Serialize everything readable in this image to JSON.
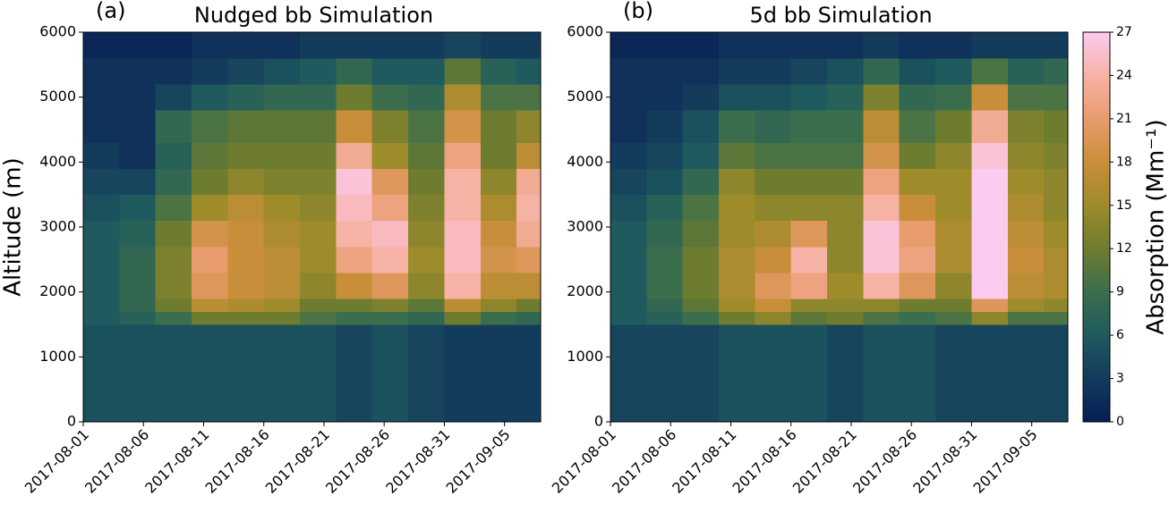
{
  "chart_data": [
    {
      "type": "heatmap",
      "panel_label": "(a)",
      "title": "Nudged bb Simulation",
      "ylabel": "Altitude (m)",
      "x": [
        "2017-08-01",
        "2017-08-04",
        "2017-08-07",
        "2017-08-10",
        "2017-08-13",
        "2017-08-16",
        "2017-08-19",
        "2017-08-22",
        "2017-08-25",
        "2017-08-28",
        "2017-08-31",
        "2017-09-03",
        "2017-09-06",
        "2017-09-08"
      ],
      "y": [
        0,
        1500,
        1700,
        1900,
        2300,
        2700,
        3100,
        3500,
        3900,
        4300,
        4800,
        5200,
        5600,
        6000
      ],
      "values": [
        [
          5,
          5,
          5,
          5,
          5,
          5,
          5,
          4,
          5,
          4,
          3,
          3,
          3
        ],
        [
          6,
          7,
          9,
          12,
          12,
          12,
          10,
          9,
          9,
          8,
          12,
          9,
          8
        ],
        [
          6,
          8,
          12,
          17,
          16,
          15,
          12,
          12,
          13,
          11,
          17,
          14,
          12
        ],
        [
          6,
          8,
          13,
          20,
          18,
          17,
          14,
          18,
          20,
          14,
          24,
          17,
          17
        ],
        [
          6,
          8,
          13,
          21,
          18,
          17,
          15,
          22,
          24,
          15,
          25,
          19,
          20
        ],
        [
          6,
          7,
          12,
          19,
          18,
          16,
          15,
          24,
          25,
          14,
          25,
          18,
          23
        ],
        [
          5,
          6,
          10,
          15,
          17,
          15,
          14,
          25,
          22,
          13,
          24,
          16,
          24
        ],
        [
          4,
          4,
          8,
          12,
          14,
          13,
          13,
          26,
          20,
          12,
          24,
          14,
          23
        ],
        [
          3,
          2,
          7,
          11,
          12,
          12,
          12,
          23,
          15,
          11,
          22,
          12,
          17
        ],
        [
          2,
          2,
          8,
          10,
          11,
          11,
          11,
          18,
          13,
          10,
          19,
          12,
          14
        ],
        [
          2,
          2,
          4,
          6,
          7,
          8,
          8,
          12,
          9,
          8,
          16,
          10,
          10
        ],
        [
          2,
          2,
          2,
          3,
          4,
          5,
          6,
          8,
          6,
          6,
          11,
          7,
          6
        ],
        [
          1,
          1,
          1,
          2,
          2,
          2,
          3,
          3,
          3,
          3,
          4,
          3,
          3
        ]
      ],
      "xlim": [
        "2017-08-01",
        "2017-09-08"
      ],
      "ylim": [
        0,
        6000
      ],
      "xticks": [
        "2017-08-01",
        "2017-08-06",
        "2017-08-11",
        "2017-08-16",
        "2017-08-21",
        "2017-08-26",
        "2017-08-31",
        "2017-09-05"
      ],
      "yticks": [
        0,
        1000,
        2000,
        3000,
        4000,
        5000,
        6000
      ]
    },
    {
      "type": "heatmap",
      "panel_label": "(b)",
      "title": "5d bb Simulation",
      "x": [
        "2017-08-01",
        "2017-08-04",
        "2017-08-07",
        "2017-08-10",
        "2017-08-13",
        "2017-08-16",
        "2017-08-19",
        "2017-08-22",
        "2017-08-25",
        "2017-08-28",
        "2017-08-31",
        "2017-09-03",
        "2017-09-06",
        "2017-09-08"
      ],
      "y": [
        0,
        1500,
        1700,
        1900,
        2300,
        2700,
        3100,
        3500,
        3900,
        4300,
        4800,
        5200,
        5600,
        6000
      ],
      "values": [
        [
          4,
          4,
          4,
          5,
          5,
          5,
          4,
          5,
          5,
          4,
          4,
          4,
          4
        ],
        [
          6,
          7,
          9,
          12,
          14,
          11,
          12,
          10,
          9,
          10,
          14,
          10,
          10
        ],
        [
          6,
          8,
          11,
          15,
          18,
          14,
          14,
          14,
          12,
          12,
          20,
          15,
          14
        ],
        [
          6,
          9,
          12,
          16,
          20,
          22,
          15,
          24,
          20,
          14,
          27,
          17,
          16
        ],
        [
          6,
          9,
          12,
          16,
          18,
          24,
          14,
          26,
          22,
          16,
          27,
          18,
          16
        ],
        [
          6,
          8,
          11,
          15,
          16,
          20,
          14,
          26,
          21,
          16,
          27,
          17,
          15
        ],
        [
          5,
          7,
          10,
          15,
          14,
          14,
          14,
          24,
          18,
          15,
          27,
          16,
          14
        ],
        [
          4,
          5,
          8,
          14,
          12,
          12,
          12,
          22,
          15,
          15,
          27,
          15,
          14
        ],
        [
          3,
          4,
          6,
          11,
          10,
          10,
          10,
          19,
          12,
          14,
          26,
          14,
          13
        ],
        [
          2,
          3,
          5,
          9,
          8,
          9,
          9,
          17,
          10,
          12,
          23,
          13,
          12
        ],
        [
          2,
          2,
          3,
          5,
          5,
          6,
          7,
          13,
          8,
          9,
          18,
          10,
          10
        ],
        [
          2,
          2,
          2,
          3,
          3,
          4,
          5,
          8,
          5,
          6,
          10,
          7,
          8
        ],
        [
          1,
          1,
          1,
          2,
          2,
          2,
          2,
          3,
          2,
          2,
          3,
          3,
          3
        ]
      ],
      "xlim": [
        "2017-08-01",
        "2017-09-08"
      ],
      "ylim": [
        0,
        6000
      ],
      "xticks": [
        "2017-08-01",
        "2017-08-06",
        "2017-08-11",
        "2017-08-16",
        "2017-08-21",
        "2017-08-26",
        "2017-08-31",
        "2017-09-05"
      ],
      "yticks": [
        0,
        1000,
        2000,
        3000,
        4000,
        5000,
        6000
      ]
    }
  ],
  "colorbar": {
    "label": "Absorption (Mm⁻¹)",
    "lim": [
      0,
      27
    ],
    "ticks": [
      0,
      3,
      6,
      9,
      12,
      15,
      18,
      21,
      24,
      27
    ],
    "colors": [
      "#061d55",
      "#133b5c",
      "#1f5a5e",
      "#3b6e4c",
      "#6e7c30",
      "#9e8b2a",
      "#c98e3a",
      "#e89c6c",
      "#f7b2a6",
      "#fccbf0"
    ]
  }
}
